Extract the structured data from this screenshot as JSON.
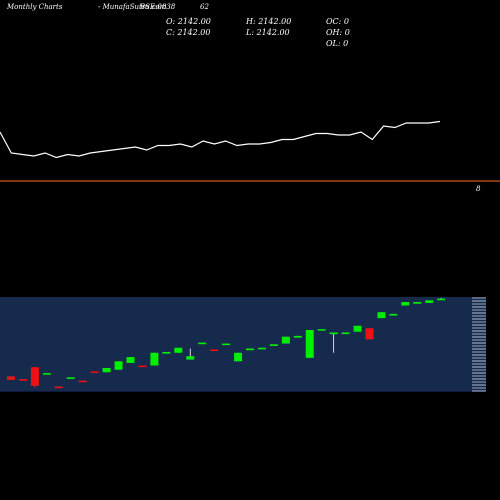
{
  "header": {
    "brand": "Monthly Charts",
    "symbol_line": "-  MunafaSutra.com",
    "instrument": "BSE:0838",
    "value": "62"
  },
  "ohlc": {
    "open": "O: 2142.00",
    "high": "H: 2142.00",
    "close": "C: 2142.00",
    "low": "L: 2142.00",
    "oc": "OC: 0",
    "oh": "OH: 0",
    "ol": "OL: 0"
  },
  "reference_label": "8",
  "colors": {
    "background": "#000000",
    "line": "#ffffff",
    "reference_line": "#ff6a2a",
    "band_fill": "#0b1a3a",
    "band_lines": "#3b5a8a",
    "bull": "#00ee00",
    "bear": "#ee1111",
    "doji": "#00ee00"
  },
  "chart_data": {
    "type": "line+candlestick",
    "line_series": [
      11,
      4,
      3.5,
      3,
      4,
      2.5,
      3.5,
      3,
      4,
      4.5,
      5,
      5.5,
      6,
      5,
      6.5,
      6.5,
      7,
      6,
      8,
      7,
      8,
      6.5,
      7,
      7,
      7.5,
      8.5,
      8.5,
      9.5,
      10.5,
      10.5,
      10,
      10,
      11,
      8.5,
      13,
      12.5,
      14,
      14,
      14,
      14.5
    ],
    "candles": [
      {
        "o": 1.6,
        "h": 1.6,
        "l": 1.2,
        "c": 1.2
      },
      {
        "o": 1.3,
        "h": 1.3,
        "l": 1.1,
        "c": 1.1
      },
      {
        "o": 2.7,
        "h": 2.7,
        "l": 0.2,
        "c": 0.5
      },
      {
        "o": 1.9,
        "h": 2.0,
        "l": 1.9,
        "c": 2.0
      },
      {
        "o": 0.4,
        "h": 0.4,
        "l": 0.3,
        "c": 0.3
      },
      {
        "o": 1.4,
        "h": 1.5,
        "l": 1.4,
        "c": 1.5
      },
      {
        "o": 1.1,
        "h": 1.1,
        "l": 1.0,
        "c": 1.0
      },
      {
        "o": 2.2,
        "h": 2.2,
        "l": 2.1,
        "c": 2.1
      },
      {
        "o": 2.1,
        "h": 2.6,
        "l": 2.1,
        "c": 2.6
      },
      {
        "o": 2.4,
        "h": 3.4,
        "l": 2.4,
        "c": 3.4
      },
      {
        "o": 3.2,
        "h": 3.9,
        "l": 3.2,
        "c": 3.9
      },
      {
        "o": 2.9,
        "h": 2.9,
        "l": 2.8,
        "c": 2.8
      },
      {
        "o": 2.9,
        "h": 4.4,
        "l": 2.9,
        "c": 4.4
      },
      {
        "o": 4.4,
        "h": 4.5,
        "l": 4.4,
        "c": 4.5
      },
      {
        "o": 4.4,
        "h": 5.0,
        "l": 4.4,
        "c": 5.0
      },
      {
        "o": 3.6,
        "h": 4.9,
        "l": 3.6,
        "c": 4.0
      },
      {
        "o": 5.5,
        "h": 5.6,
        "l": 5.5,
        "c": 5.6
      },
      {
        "o": 4.8,
        "h": 4.8,
        "l": 4.7,
        "c": 4.7
      },
      {
        "o": 5.4,
        "h": 5.5,
        "l": 5.4,
        "c": 5.5
      },
      {
        "o": 3.4,
        "h": 4.4,
        "l": 3.4,
        "c": 4.4
      },
      {
        "o": 4.8,
        "h": 4.9,
        "l": 4.8,
        "c": 4.9
      },
      {
        "o": 4.9,
        "h": 5.0,
        "l": 4.9,
        "c": 5.0
      },
      {
        "o": 5.3,
        "h": 5.4,
        "l": 5.3,
        "c": 5.4
      },
      {
        "o": 5.5,
        "h": 6.3,
        "l": 5.5,
        "c": 6.3
      },
      {
        "o": 6.2,
        "h": 6.4,
        "l": 6.2,
        "c": 6.4
      },
      {
        "o": 3.8,
        "h": 7.1,
        "l": 3.8,
        "c": 7.1
      },
      {
        "o": 7.1,
        "h": 7.2,
        "l": 7.1,
        "c": 7.2
      },
      {
        "o": 6.6,
        "h": 6.8,
        "l": 4.4,
        "c": 6.8
      },
      {
        "o": 6.7,
        "h": 6.8,
        "l": 6.7,
        "c": 6.8
      },
      {
        "o": 6.9,
        "h": 7.6,
        "l": 6.9,
        "c": 7.6
      },
      {
        "o": 7.3,
        "h": 7.3,
        "l": 6.0,
        "c": 6.0
      },
      {
        "o": 8.5,
        "h": 9.2,
        "l": 8.5,
        "c": 9.2
      },
      {
        "o": 8.9,
        "h": 9.0,
        "l": 8.9,
        "c": 9.0
      },
      {
        "o": 10.0,
        "h": 10.4,
        "l": 10.0,
        "c": 10.4
      },
      {
        "o": 10.3,
        "h": 10.4,
        "l": 10.3,
        "c": 10.4
      },
      {
        "o": 10.3,
        "h": 10.6,
        "l": 10.3,
        "c": 10.6
      },
      {
        "o": 10.7,
        "h": 10.9,
        "l": 10.7,
        "c": 10.8
      }
    ]
  }
}
